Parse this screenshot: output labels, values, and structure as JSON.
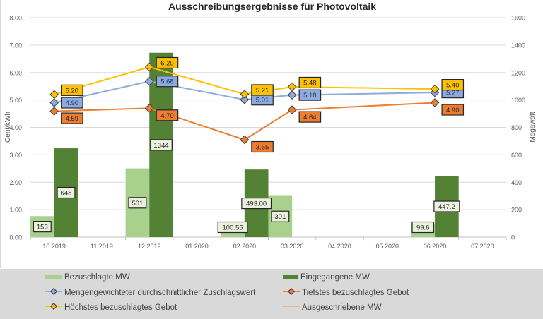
{
  "chart_data": {
    "type": "bar",
    "title": "Ausschreibungsergebnisse für Photovoltaik",
    "ylabel": "Cent/kWh",
    "y2label": "Megawatt",
    "ylim": [
      0,
      8
    ],
    "y2lim": [
      0,
      1600
    ],
    "yticks": [
      "0.00",
      "1.00",
      "2.00",
      "3.00",
      "4.00",
      "5.00",
      "6.00",
      "7.00",
      "8.00"
    ],
    "y2ticks": [
      "0",
      "200",
      "400",
      "600",
      "800",
      "1000",
      "1200",
      "1400",
      "1600"
    ],
    "grid": true,
    "legend_position": "bottom",
    "categories": [
      "10.2019",
      "11.2019",
      "12.2019",
      "01.2020",
      "02.2020",
      "03.2020",
      "04.2020",
      "05.2020",
      "06.2020",
      "07.2020"
    ],
    "series": [
      {
        "name": "Bezuschlagte MW",
        "type": "bar",
        "axis": "right",
        "color": "#a9d18e",
        "values": [
          153,
          null,
          501,
          null,
          100.55,
          301,
          null,
          null,
          99.6,
          null
        ],
        "labels": [
          "153",
          "",
          "501",
          "",
          "100.55",
          "301",
          "",
          "",
          "99.6",
          ""
        ]
      },
      {
        "name": "Eingegangene MW",
        "type": "bar",
        "axis": "right",
        "color": "#548235",
        "values": [
          648,
          null,
          1344,
          null,
          493.0,
          null,
          null,
          null,
          447.2,
          null
        ],
        "labels": [
          "648",
          "",
          "1344",
          "",
          "493.00",
          "",
          "",
          "",
          "447.2",
          ""
        ]
      },
      {
        "name": "Mengengewichteter durchschnittlicher Zuschlagswert",
        "type": "line",
        "axis": "left",
        "color": "#8faadc",
        "values": [
          4.9,
          null,
          5.68,
          null,
          5.01,
          5.18,
          null,
          null,
          5.27,
          null
        ],
        "labels": [
          "4.90",
          "",
          "5.68",
          "",
          "5.01",
          "5.18",
          "",
          "",
          "5.27",
          ""
        ]
      },
      {
        "name": "Tiefstes bezuschlagtes Gebot",
        "type": "line",
        "axis": "left",
        "color": "#ed7d31",
        "values": [
          4.59,
          null,
          4.7,
          null,
          3.55,
          4.64,
          null,
          null,
          4.9,
          null
        ],
        "labels": [
          "4.59",
          "",
          "4.70",
          "",
          "3.55",
          "4.64",
          "",
          "",
          "4.90",
          ""
        ]
      },
      {
        "name": "Höchstes bezuschlagtes Gebot",
        "type": "line",
        "axis": "left",
        "color": "#ffc000",
        "values": [
          5.2,
          null,
          6.2,
          null,
          5.21,
          5.48,
          null,
          null,
          5.4,
          null
        ],
        "labels": [
          "5.20",
          "",
          "6.20",
          "",
          "5.21",
          "5.48",
          "",
          "",
          "5.40",
          ""
        ]
      },
      {
        "name": "Ausgeschriebene MW",
        "type": "line",
        "axis": "right",
        "color": "#f4b183",
        "values": [
          null,
          null,
          null,
          null,
          null,
          null,
          null,
          null,
          null,
          null
        ]
      }
    ]
  },
  "legend": {
    "items": [
      {
        "label": "Bezuschlagte MW"
      },
      {
        "label": "Eingegangene MW"
      },
      {
        "label": "Mengengewichteter durchschnittlicher Zuschlagswert"
      },
      {
        "label": "Tiefstes bezuschlagtes Gebot"
      },
      {
        "label": "Höchstes bezuschlagtes Gebot"
      },
      {
        "label": "Ausgeschriebene MW"
      }
    ]
  }
}
